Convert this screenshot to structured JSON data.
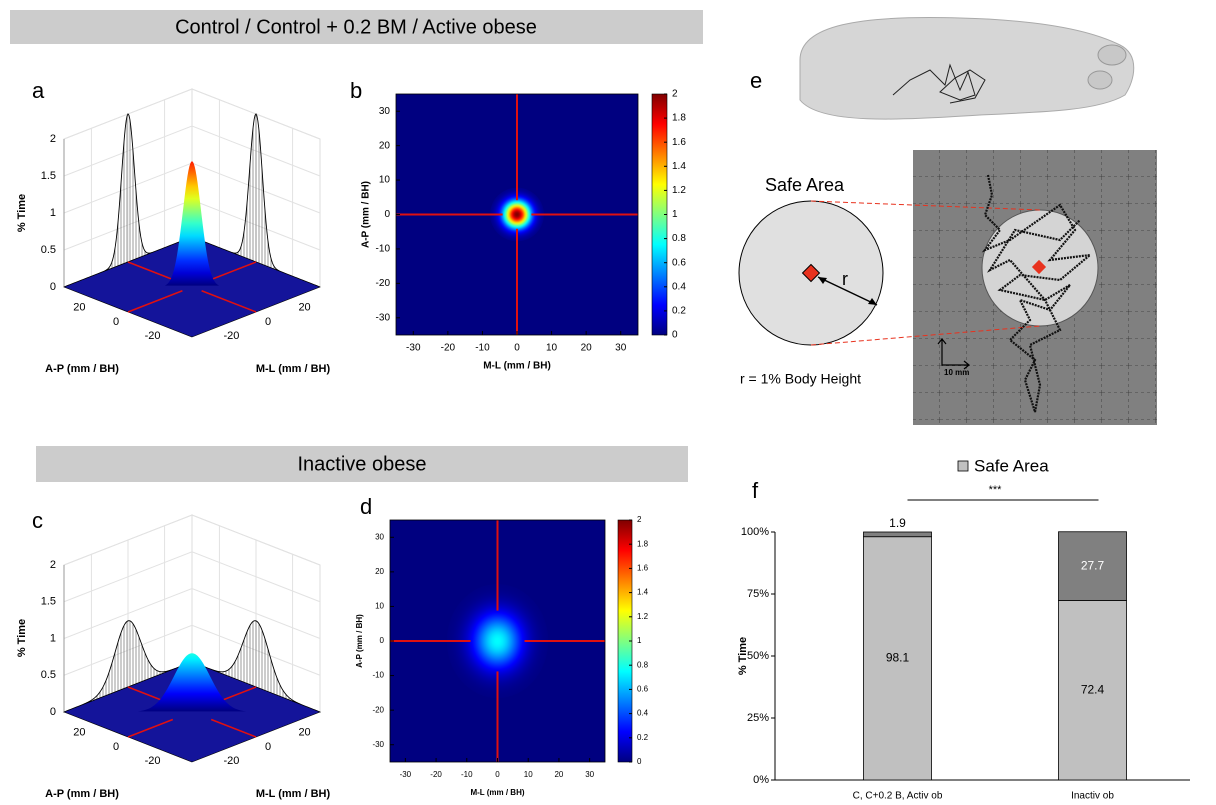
{
  "figure": {
    "header_top": "Control / Control + 0.2 BM / Active obese",
    "header_bottom": "Inactive obese",
    "panel_letters": [
      "a",
      "b",
      "c",
      "d",
      "e",
      "f"
    ],
    "safe_area_label": "Safe Area",
    "radius_label": "r",
    "radius_note": "r = 1% Body Height",
    "scale_bar": "10 mm"
  },
  "chart_data": [
    {
      "type": "surface3d",
      "xlabel": "M-L (mm / BH)",
      "ylabel": "A-P (mm / BH)",
      "zlabel": "% Time",
      "xlim": [
        -35,
        35
      ],
      "ylim": [
        -35,
        35
      ],
      "zlim": [
        0,
        2
      ],
      "xticks": [
        -20,
        0,
        20
      ],
      "yticks": [
        -20,
        0,
        20
      ],
      "zticks": [
        0,
        0.5,
        1,
        1.5,
        2
      ],
      "peak": 1.7,
      "profile_peak": 2,
      "spread": 3.5
    },
    {
      "type": "heatmap",
      "xlabel": "M-L (mm / BH)",
      "ylabel": "A-P (mm / BH)",
      "xlim": [
        -35,
        35
      ],
      "ylim": [
        -35,
        35
      ],
      "xticks": [
        -30,
        -20,
        -10,
        0,
        10,
        20,
        30
      ],
      "yticks": [
        -30,
        -20,
        -10,
        0,
        10,
        20,
        30
      ],
      "clim": [
        0,
        2
      ],
      "cticks": [
        0,
        0.2,
        0.4,
        0.6,
        0.8,
        1,
        1.2,
        1.4,
        1.6,
        1.8,
        2
      ],
      "peak": 2,
      "spread": 2.6
    },
    {
      "type": "surface3d",
      "xlabel": "M-L (mm / BH)",
      "ylabel": "A-P (mm / BH)",
      "zlabel": "% Time",
      "xlim": [
        -35,
        35
      ],
      "ylim": [
        -35,
        35
      ],
      "zlim": [
        0,
        2
      ],
      "xticks": [
        -20,
        0,
        20
      ],
      "yticks": [
        -20,
        0,
        20
      ],
      "zticks": [
        0,
        0.5,
        1,
        1.5,
        2
      ],
      "peak": 0.8,
      "profile_peak": 0.9,
      "spread": 7
    },
    {
      "type": "heatmap",
      "xlabel": "M-L (mm / BH)",
      "ylabel": "A-P (mm / BH)",
      "xlim": [
        -35,
        35
      ],
      "ylim": [
        -35,
        35
      ],
      "xticks": [
        -30,
        -20,
        -10,
        0,
        10,
        20,
        30
      ],
      "yticks": [
        -30,
        -20,
        -10,
        0,
        10,
        20,
        30
      ],
      "clim": [
        0,
        2
      ],
      "cticks": [
        0,
        0.2,
        0.4,
        0.6,
        0.8,
        1,
        1.2,
        1.4,
        1.6,
        1.8,
        2
      ],
      "peak": 0.75,
      "spread": 5.5
    },
    {
      "type": "stacked_bar",
      "annotation": "***",
      "ylabel": "% Time",
      "categories": [
        "C, C+0.2 B, Activ ob",
        "Inactiv ob"
      ],
      "series": [
        {
          "name": "Safe Area",
          "color": "#c0c0c0",
          "values": [
            98.1,
            72.4
          ]
        },
        {
          "color": "#808080",
          "values": [
            1.9,
            27.7
          ]
        }
      ],
      "ylim": [
        0,
        100
      ],
      "yticks": [
        {
          "value": 0,
          "label": "0%"
        },
        {
          "value": 25,
          "label": "25%"
        },
        {
          "value": 50,
          "label": "50%"
        },
        {
          "value": 75,
          "label": "75%"
        },
        {
          "value": 100,
          "label": "100%"
        }
      ]
    }
  ]
}
